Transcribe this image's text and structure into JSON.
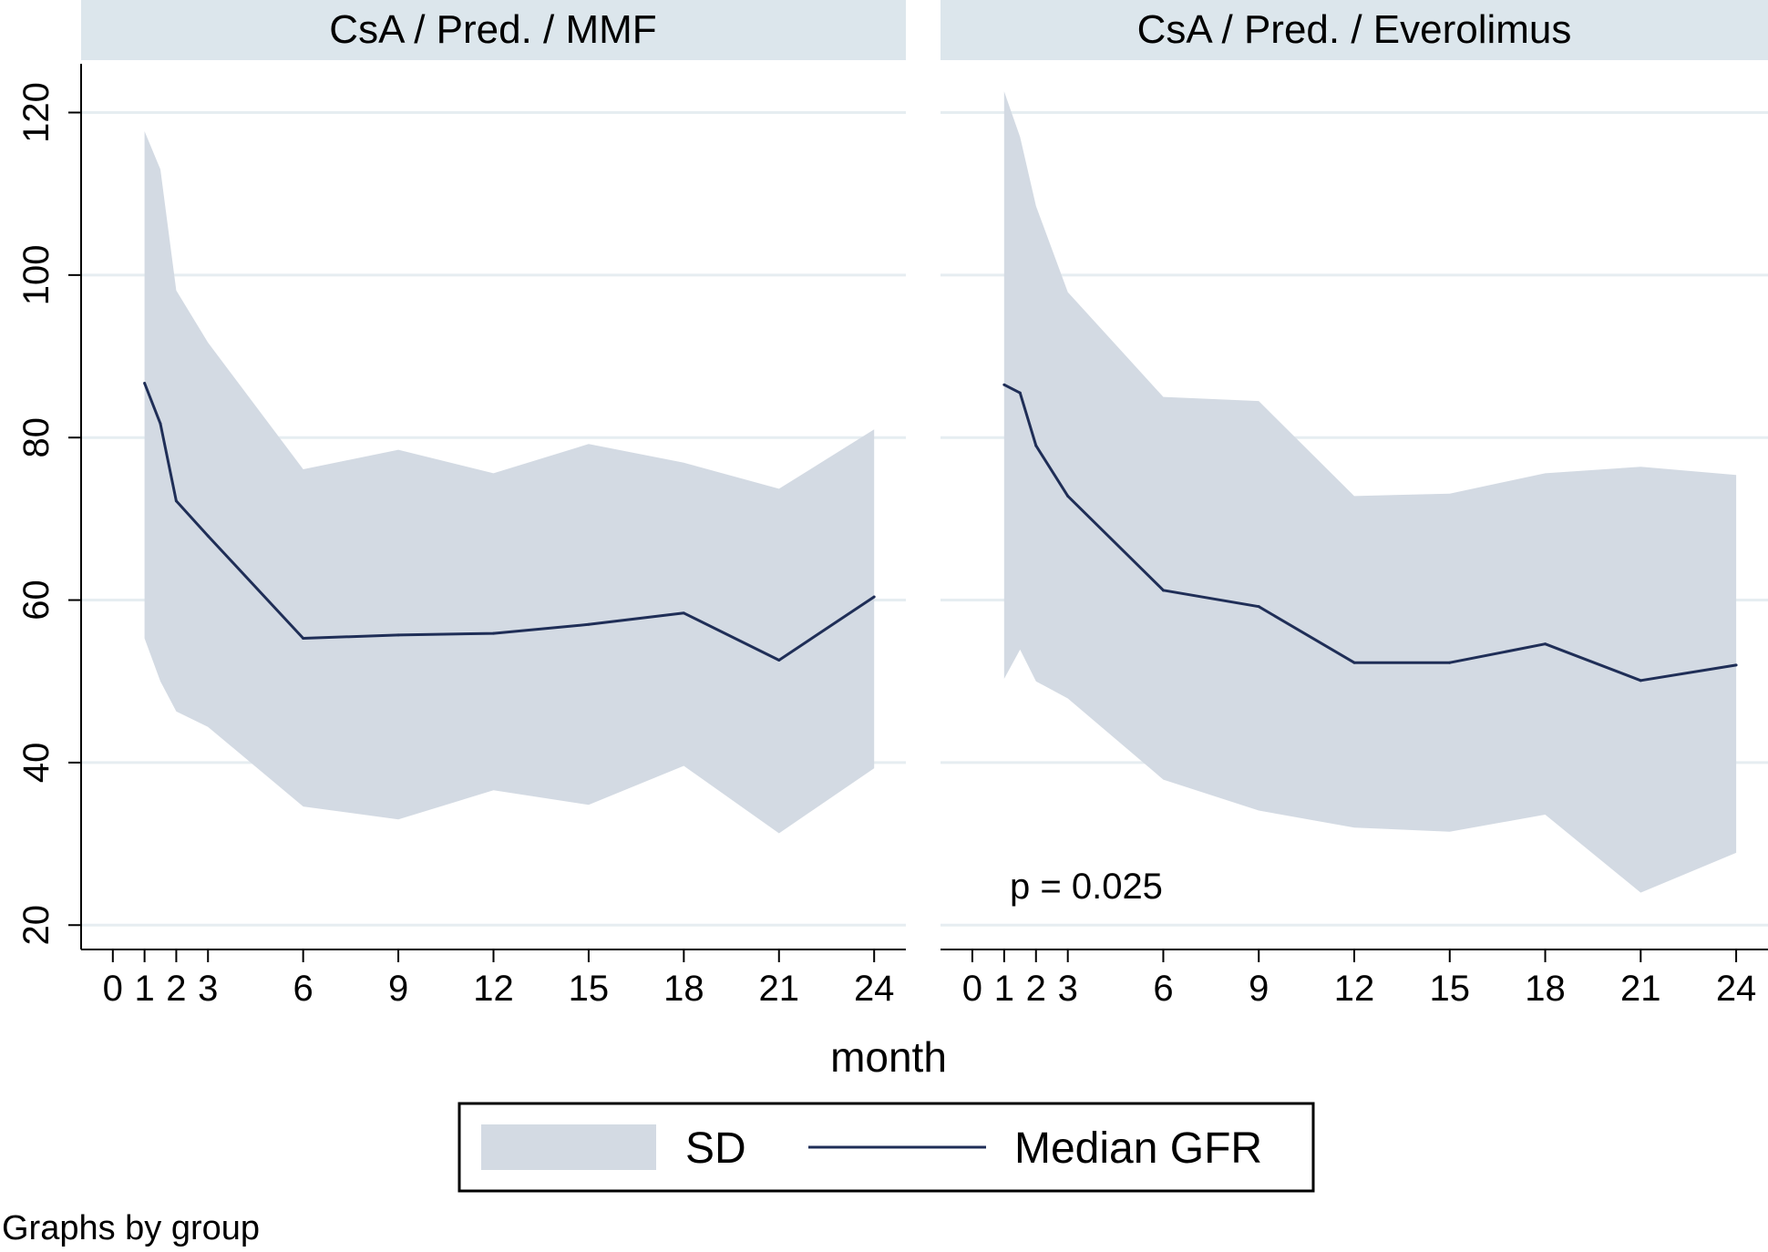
{
  "colors": {
    "band": "#d3dae3",
    "line": "#1f2e57",
    "strip": "#dce6ec",
    "grid": "#e6edf1",
    "axis": "#000000"
  },
  "note": "Graphs by group",
  "chart_data": {
    "type": "area",
    "by": "group",
    "xlabel": "month",
    "ylabel": "",
    "xticks": [
      0,
      1,
      2,
      3,
      6,
      9,
      12,
      15,
      18,
      21,
      24
    ],
    "yticks": [
      20,
      40,
      60,
      80,
      100,
      120
    ],
    "xlim": [
      -1,
      25
    ],
    "ylim": [
      17,
      126
    ],
    "grid": true,
    "legend": {
      "position": "bottom-center",
      "entries": [
        {
          "label": "SD",
          "kind": "band"
        },
        {
          "label": "Median GFR",
          "kind": "line"
        }
      ]
    },
    "panels": [
      {
        "title": "CsA / Pred. / MMF",
        "annotation": "",
        "x": [
          1,
          1.5,
          2,
          3,
          6,
          9,
          12,
          15,
          18,
          21,
          24
        ],
        "median": [
          86.7,
          81.7,
          72.2,
          67.9,
          55.3,
          55.7,
          55.9,
          57.0,
          58.4,
          52.6,
          60.4
        ],
        "sd_upper": [
          117.7,
          113.0,
          98.1,
          91.7,
          76.1,
          78.5,
          75.6,
          79.2,
          76.9,
          73.7,
          81.0
        ],
        "sd_lower": [
          55.3,
          50.0,
          46.3,
          44.4,
          34.6,
          33.0,
          36.6,
          34.8,
          39.6,
          31.3,
          39.3
        ]
      },
      {
        "title": "CsA / Pred. / Everolimus",
        "annotation": "p = 0.025",
        "x": [
          1,
          1.5,
          2,
          3,
          6,
          9,
          12,
          15,
          18,
          21,
          24
        ],
        "median": [
          86.5,
          85.5,
          79.0,
          72.8,
          61.2,
          59.2,
          52.3,
          52.3,
          54.6,
          50.1,
          52.0
        ],
        "sd_upper": [
          122.6,
          117.0,
          108.5,
          97.9,
          85.0,
          84.5,
          72.8,
          73.1,
          75.6,
          76.4,
          75.4
        ],
        "sd_lower": [
          50.3,
          53.9,
          50.0,
          47.9,
          37.9,
          34.1,
          32.0,
          31.5,
          33.6,
          24.0,
          28.9
        ]
      }
    ]
  }
}
